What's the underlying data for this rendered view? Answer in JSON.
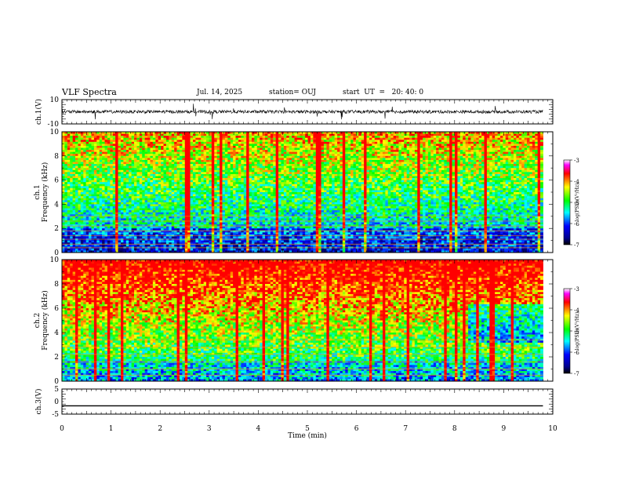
{
  "header": {
    "title": "VLF Spectra",
    "date": "Jul. 14, 2025",
    "station": "station= OUJ",
    "start": "start  UT  =   20: 40: 0"
  },
  "chart_data": [
    {
      "type": "line",
      "panel": "waveform-ch1",
      "ylabel": "ch.1(V)",
      "ylim": [
        -10,
        10
      ],
      "y_ticks": [
        "10",
        "-10"
      ],
      "x_range_min": [
        0,
        10
      ],
      "description_values": {
        "baseline": 0
      }
    },
    {
      "type": "heatmap",
      "panel": "spectrogram-ch1",
      "ylabel": "ch.1\nFrequency (kHz)",
      "ylim": [
        0,
        10
      ],
      "y_ticks": [
        "0",
        "2",
        "4",
        "6",
        "8",
        "10"
      ],
      "x_range_min": [
        0,
        10
      ],
      "colorbar": {
        "label": "log(PSD)(V²/Hz)",
        "ticks": [
          "-3",
          "-4",
          "-5",
          "-6",
          "-7"
        ],
        "range": [
          -7,
          -3
        ]
      }
    },
    {
      "type": "heatmap",
      "panel": "spectrogram-ch2",
      "ylabel": "ch.2\nFrequency (kHz)",
      "ylim": [
        0,
        10
      ],
      "y_ticks": [
        "0",
        "2",
        "4",
        "6",
        "8",
        "10"
      ],
      "x_range_min": [
        0,
        10
      ],
      "colorbar": {
        "label": "log(PSD)(V²/Hz)",
        "ticks": [
          "-3",
          "-4",
          "-5",
          "-6",
          "-7"
        ],
        "range": [
          -7,
          -3
        ]
      }
    },
    {
      "type": "line",
      "panel": "waveform-ch3",
      "ylabel": "ch.3(V)",
      "ylim": [
        -5,
        5
      ],
      "y_ticks": [
        "5",
        "0",
        "-5"
      ],
      "x_range_min": [
        0,
        10
      ],
      "constant_value": -1.7
    }
  ],
  "xaxis": {
    "label": "Time (min)",
    "ticks": [
      "0",
      "1",
      "2",
      "3",
      "4",
      "5",
      "6",
      "7",
      "8",
      "9",
      "10"
    ],
    "range": [
      0,
      10
    ],
    "data_end": 9.8
  },
  "colors": {
    "jet": [
      "#00008f",
      "#0000ff",
      "#00ffff",
      "#00ff00",
      "#ffff00",
      "#ff0000",
      "#ff00ff",
      "#ffffff"
    ]
  }
}
